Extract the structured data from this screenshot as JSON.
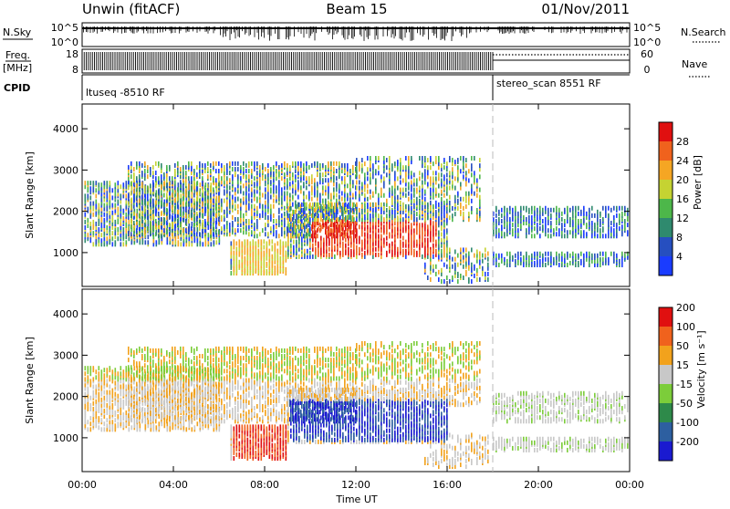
{
  "header": {
    "radar": "Unwin (fitACF)",
    "beam": "Beam 15",
    "date": "01/Nov/2011"
  },
  "top_panels": {
    "nsky_label": "N.Sky",
    "nsky_ticks": [
      "10^5",
      "10^0"
    ],
    "nsearch_label": "N.Search",
    "nsearch_ticks": [
      "10^5",
      "10^0"
    ],
    "freq_label": "Freq.",
    "freq_unit": "[MHz]",
    "freq_ticks": [
      "18",
      "8"
    ],
    "nave_label": "Nave",
    "nave_ticks": [
      "60",
      "0"
    ],
    "cpid_label": "CPID",
    "cpid_segments": [
      {
        "name": "ltuseq -8510 RF",
        "start_hour": 0,
        "end_hour": 18
      },
      {
        "name": "stereo_scan 8551 RF",
        "start_hour": 18,
        "end_hour": 24
      }
    ]
  },
  "chart_data": [
    {
      "type": "heatmap",
      "title": "",
      "xlabel": "Time UT",
      "ylabel": "Slant Range [km]",
      "x_ticks": [
        "00:00",
        "04:00",
        "08:00",
        "12:00",
        "16:00",
        "20:00",
        "00:00"
      ],
      "xlim_hours": [
        0,
        24
      ],
      "ylim": [
        180,
        4600
      ],
      "y_ticks": [
        "1000",
        "2000",
        "3000",
        "4000"
      ],
      "y_tick_values": [
        1000,
        2000,
        3000,
        4000
      ],
      "colorbar": {
        "label": "Power [dB]",
        "ticks": [
          "4",
          "8",
          "12",
          "16",
          "20",
          "24",
          "28"
        ],
        "colors": [
          "#1a3cff",
          "#264fc0",
          "#2f8a6e",
          "#4db74a",
          "#c5d332",
          "#f5a623",
          "#f0621d",
          "#e01010"
        ]
      }
    },
    {
      "type": "heatmap",
      "title": "",
      "xlabel": "Time UT",
      "ylabel": "Slant Range [km]",
      "x_ticks": [
        "00:00",
        "04:00",
        "08:00",
        "12:00",
        "16:00",
        "20:00",
        "00:00"
      ],
      "xlim_hours": [
        0,
        24
      ],
      "ylim": [
        180,
        4600
      ],
      "y_ticks": [
        "1000",
        "2000",
        "3000",
        "4000"
      ],
      "y_tick_values": [
        1000,
        2000,
        3000,
        4000
      ],
      "colorbar": {
        "label": "Velocity [m s⁻¹]",
        "ticks": [
          "200",
          "100",
          "50",
          "15",
          "-15",
          "-50",
          "-100",
          "-200"
        ],
        "colors": [
          "#1a1ad0",
          "#2d5fa0",
          "#2e8a4a",
          "#7ccd3a",
          "#c8c8c8",
          "#f2a21c",
          "#f0621d",
          "#e01010"
        ]
      }
    }
  ],
  "x_axis": {
    "label": "Time UT",
    "ticks": [
      "00:00",
      "04:00",
      "08:00",
      "12:00",
      "16:00",
      "20:00",
      "00:00"
    ]
  }
}
